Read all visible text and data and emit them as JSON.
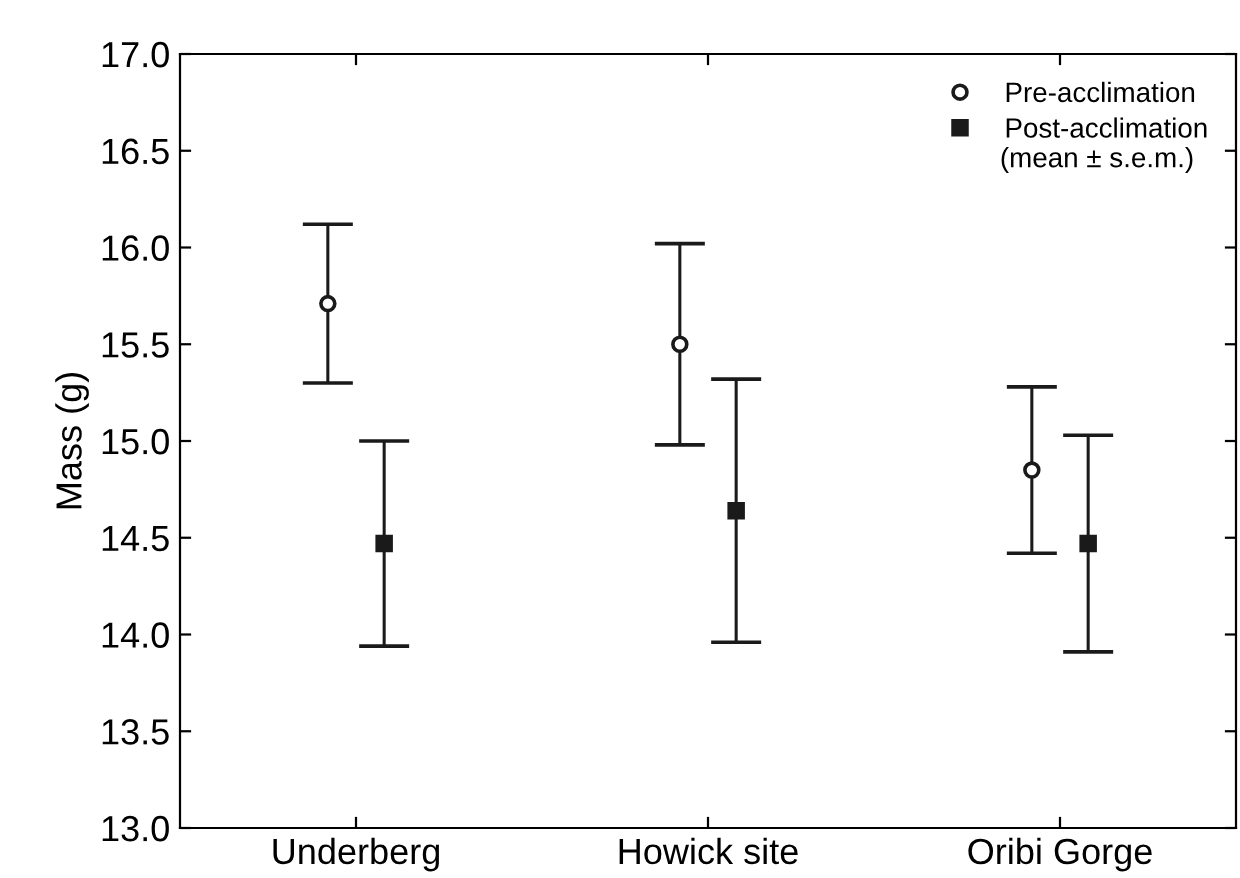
{
  "chart_data": {
    "type": "scatter",
    "ylabel": "Mass (g)",
    "categories": [
      "Underberg",
      "Howick site",
      "Oribi Gorge"
    ],
    "series": [
      {
        "name": "Pre-acclimation",
        "color": "#1a1a1a",
        "marker": "circle",
        "values": [
          15.71,
          15.5,
          14.85
        ],
        "errors": [
          0.41,
          0.52,
          0.43
        ]
      },
      {
        "name": "Post-acclimation",
        "color": "#1a1a1a",
        "marker": "square",
        "values": [
          14.47,
          14.64,
          14.47
        ],
        "errors": [
          0.53,
          0.68,
          0.56
        ]
      }
    ],
    "ylim": [
      13.0,
      17.0
    ],
    "yticks": [
      {
        "value": 13.0,
        "label": "13.0"
      },
      {
        "value": 13.5,
        "label": "13.5"
      },
      {
        "value": 14.0,
        "label": "14.0"
      },
      {
        "value": 14.5,
        "label": "14.5"
      },
      {
        "value": 15.0,
        "label": "15.0"
      },
      {
        "value": 15.5,
        "label": "15.5"
      },
      {
        "value": 16.0,
        "label": "16.0"
      },
      {
        "value": 16.5,
        "label": "16.5"
      },
      {
        "value": 17.0,
        "label": "17.0"
      }
    ],
    "legend": "top right",
    "grid": false,
    "annotations": [
      "(mean ± s.e.m.)"
    ]
  }
}
